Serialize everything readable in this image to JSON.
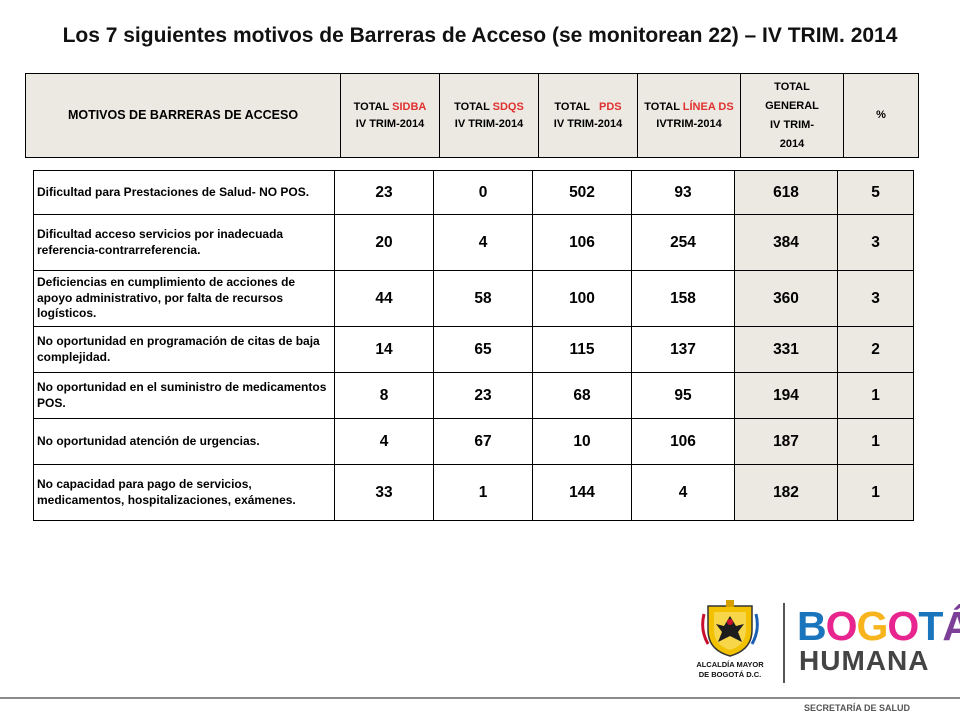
{
  "title": "Los 7 siguientes motivos de Barreras de Acceso (se monitorean 22) – IV TRIM. 2014",
  "header": {
    "motivos": "MOTIVOS DE BARRERAS DE ACCESO",
    "sidba": {
      "prefix": "TOTAL ",
      "red": "SIDBA",
      "line2": "IV TRIM-2014"
    },
    "sdqs": {
      "prefix": "TOTAL ",
      "red": "SDQS",
      "line2": "IV TRIM-2014"
    },
    "pds": {
      "prefix": "TOTAL   ",
      "red": "PDS",
      "line2": "IV TRIM-2014"
    },
    "linea": {
      "prefix": "TOTAL ",
      "red": "LÍNEA DS",
      "line2": "IVTRIM-2014"
    },
    "general": {
      "l1": "TOTAL",
      "l2": "GENERAL",
      "l3": "IV TRIM-",
      "l4": "2014"
    },
    "pct": "%"
  },
  "rows": [
    {
      "desc": "Dificultad para Prestaciones de Salud- NO POS.",
      "sidba": "23",
      "sdqs": "0",
      "pds": "502",
      "linea": "93",
      "total": "618",
      "pct": "5"
    },
    {
      "desc": "Dificultad acceso servicios por inadecuada referencia-contrarreferencia.",
      "sidba": "20",
      "sdqs": "4",
      "pds": "106",
      "linea": "254",
      "total": "384",
      "pct": "3"
    },
    {
      "desc": "Deficiencias en cumplimiento de acciones de apoyo administrativo, por falta de recursos logísticos.",
      "sidba": "44",
      "sdqs": "58",
      "pds": "100",
      "linea": "158",
      "total": "360",
      "pct": "3"
    },
    {
      "desc": "No oportunidad en programación de citas de baja complejidad.",
      "sidba": "14",
      "sdqs": "65",
      "pds": "115",
      "linea": "137",
      "total": "331",
      "pct": "2"
    },
    {
      "desc": "No oportunidad en el suministro de medicamentos POS.",
      "sidba": "8",
      "sdqs": "23",
      "pds": "68",
      "linea": "95",
      "total": "194",
      "pct": "1"
    },
    {
      "desc": "No oportunidad  atención de urgencias.",
      "sidba": "4",
      "sdqs": "67",
      "pds": "10",
      "linea": "106",
      "total": "187",
      "pct": "1"
    },
    {
      "desc": "No capacidad para pago de servicios, medicamentos, hospitalizaciones, exámenes.",
      "sidba": "33",
      "sdqs": "1",
      "pds": "144",
      "linea": "4",
      "total": "182",
      "pct": "1"
    }
  ],
  "footer": {
    "alcaldia_l1": "ALCALDÍA MAYOR",
    "alcaldia_l2": "DE BOGOTÁ D.C.",
    "brand_letters": [
      "B",
      "O",
      "G",
      "O",
      "T",
      "Á"
    ],
    "brand_line2": "HUMANA",
    "secretaria": "SECRETARÍA DE SALUD"
  },
  "colors": {
    "header_bg": "#ece9e2",
    "accent_red": "#e03030"
  }
}
